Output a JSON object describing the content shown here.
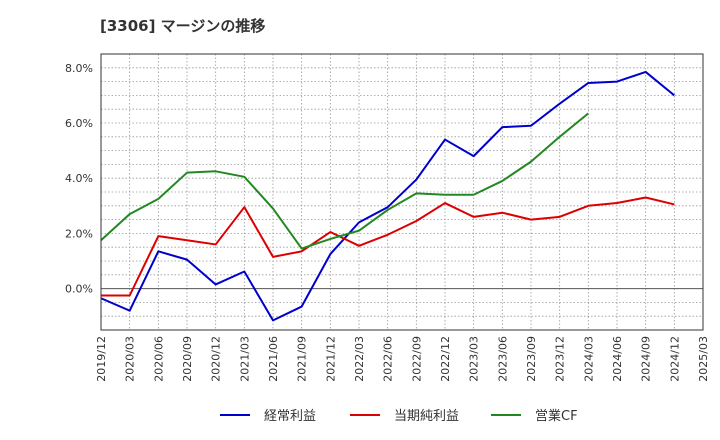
{
  "chart_data": {
    "type": "line",
    "title": "[3306]  マージンの推移",
    "x": [
      "2019/12",
      "2020/03",
      "2020/06",
      "2020/09",
      "2020/12",
      "2021/03",
      "2021/06",
      "2021/09",
      "2021/12",
      "2022/03",
      "2022/06",
      "2022/09",
      "2022/12",
      "2023/03",
      "2023/06",
      "2023/09",
      "2023/12",
      "2024/03",
      "2024/06",
      "2024/09",
      "2024/12",
      "2025/03"
    ],
    "ylim": [
      -1.5,
      8.5
    ],
    "yticks": [
      0,
      2,
      4,
      6,
      8
    ],
    "ytick_labels": [
      "0.0%",
      "2.0%",
      "4.0%",
      "6.0%",
      "8.0%"
    ],
    "grid": true,
    "legend_position": "bottom",
    "series": [
      {
        "name": "経常利益",
        "color": "#0000cc",
        "values": [
          -0.35,
          -0.8,
          1.35,
          1.05,
          0.15,
          0.62,
          -1.15,
          -0.65,
          1.25,
          2.4,
          2.95,
          3.95,
          5.4,
          4.8,
          5.85,
          5.9,
          6.7,
          7.45,
          7.5,
          7.85,
          7.0,
          null
        ]
      },
      {
        "name": "当期純利益",
        "color": "#dd0000",
        "values": [
          -0.25,
          -0.25,
          1.9,
          1.75,
          1.6,
          2.95,
          1.15,
          1.35,
          2.05,
          1.55,
          1.95,
          2.45,
          3.1,
          2.6,
          2.75,
          2.5,
          2.6,
          3.0,
          3.1,
          3.3,
          3.05,
          null
        ]
      },
      {
        "name": "営業CF",
        "color": "#228822",
        "values": [
          1.75,
          2.7,
          3.25,
          4.2,
          4.25,
          4.05,
          2.9,
          1.45,
          1.8,
          2.1,
          2.85,
          3.45,
          3.4,
          3.4,
          3.9,
          4.6,
          5.5,
          6.35,
          null,
          null,
          null,
          null
        ]
      }
    ]
  }
}
